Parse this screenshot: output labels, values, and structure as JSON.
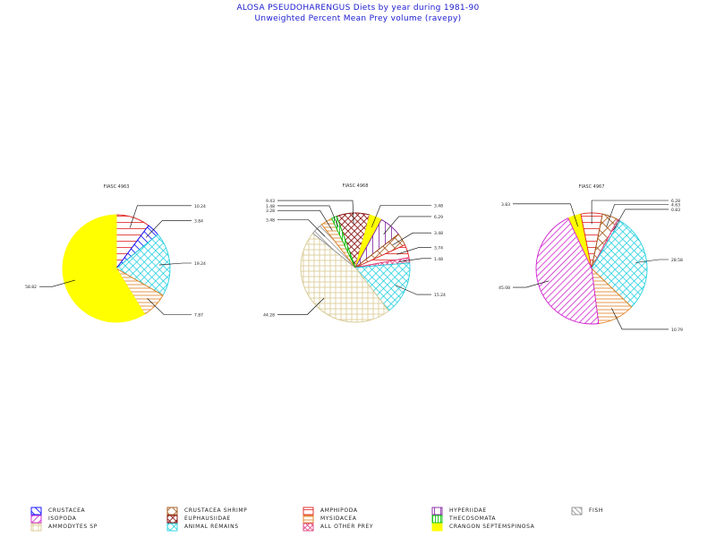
{
  "header": {
    "title": "ALOSA PSEUDOHARENGUS Diets by year during 1981-90",
    "subtitle": "Unweighted Percent Mean Prey volume (ravepy)"
  },
  "colors": {
    "title": "#1a1ad0",
    "crustacea": "#0000ff",
    "isopoda": "#d020d0",
    "ammodytes": "#d8c890",
    "crustacea_shrimp": "#a05010",
    "euphausiidae": "#800000",
    "animal_remains": "#20d0e0",
    "amphipoda": "#e02020",
    "mysidacea": "#e08020",
    "all_other_prey": "#e04080",
    "hyperiidae": "#8020a0",
    "thecosomata": "#00c000",
    "crangon": "#ffff00",
    "fish": "#909090"
  },
  "legend": [
    {
      "key": "crustacea",
      "label": "CRUSTACEA"
    },
    {
      "key": "isopoda",
      "label": "ISOPODA"
    },
    {
      "key": "ammodytes",
      "label": "AMMODYTES SP"
    },
    {
      "key": "crustacea_shrimp",
      "label": "CRUSTACEA SHRIMP"
    },
    {
      "key": "euphausiidae",
      "label": "EUPHAUSIIDAE"
    },
    {
      "key": "animal_remains",
      "label": "ANIMAL REMAINS"
    },
    {
      "key": "amphipoda",
      "label": "AMPHIPODA"
    },
    {
      "key": "mysidacea",
      "label": "MYSIDACEA"
    },
    {
      "key": "all_other_prey",
      "label": "ALL OTHER PREY"
    },
    {
      "key": "hyperiidae",
      "label": "HYPERIIDAE"
    },
    {
      "key": "thecosomata",
      "label": "THECOSOMATA"
    },
    {
      "key": "crangon",
      "label": "CRANGON SEPTEMSPINOSA"
    },
    {
      "key": "fish",
      "label": "FISH"
    }
  ],
  "chart_data": [
    {
      "type": "pie",
      "title": "FIASC 4963",
      "slices": [
        {
          "key": "amphipoda",
          "value": 10.24,
          "label": "10.24"
        },
        {
          "key": "crustacea",
          "value": 3.84,
          "label": "3.84"
        },
        {
          "key": "animal_remains",
          "value": 19.24,
          "label": "19.24"
        },
        {
          "key": "mysidacea",
          "value": 7.87,
          "label": "7.87"
        },
        {
          "key": "crangon",
          "value": 58.82,
          "label": "58.82"
        }
      ]
    },
    {
      "type": "pie",
      "title": "FIASC 4968",
      "slices": [
        {
          "key": "euphausiidae",
          "value": 9.43,
          "label": "9.43"
        },
        {
          "key": "crangon",
          "value": 3.48,
          "label": "3.48"
        },
        {
          "key": "hyperiidae",
          "value": 6.29,
          "label": "6.29"
        },
        {
          "key": "crustacea_shrimp",
          "value": 3.48,
          "label": "3.48"
        },
        {
          "key": "amphipoda",
          "value": 3.74,
          "label": "3.74"
        },
        {
          "key": "all_other_prey",
          "value": 1.48,
          "label": "1.48"
        },
        {
          "key": "animal_remains",
          "value": 15.24,
          "label": "15.24"
        },
        {
          "key": "ammodytes",
          "value": 44.28,
          "label": "44.28"
        },
        {
          "key": "fish",
          "value": 3.48,
          "label": "3.48"
        },
        {
          "key": "mysidacea",
          "value": 3.28,
          "label": "3.28"
        },
        {
          "key": "thecosomata",
          "value": 1.48,
          "label": "1.48"
        }
      ]
    },
    {
      "type": "pie",
      "title": "FIASC 4967",
      "slices": [
        {
          "key": "crangon",
          "value": 3.83,
          "label": "3.83"
        },
        {
          "key": "amphipoda",
          "value": 6.28,
          "label": "6.28"
        },
        {
          "key": "crustacea_shrimp",
          "value": 4.63,
          "label": "4.63"
        },
        {
          "key": "all_other_prey",
          "value": 0.83,
          "label": "0.83"
        },
        {
          "key": "animal_remains",
          "value": 28.58,
          "label": "28.58"
        },
        {
          "key": "mysidacea",
          "value": 10.79,
          "label": "10.79"
        },
        {
          "key": "isopoda",
          "value": 45.08,
          "label": "45.08"
        }
      ]
    }
  ]
}
